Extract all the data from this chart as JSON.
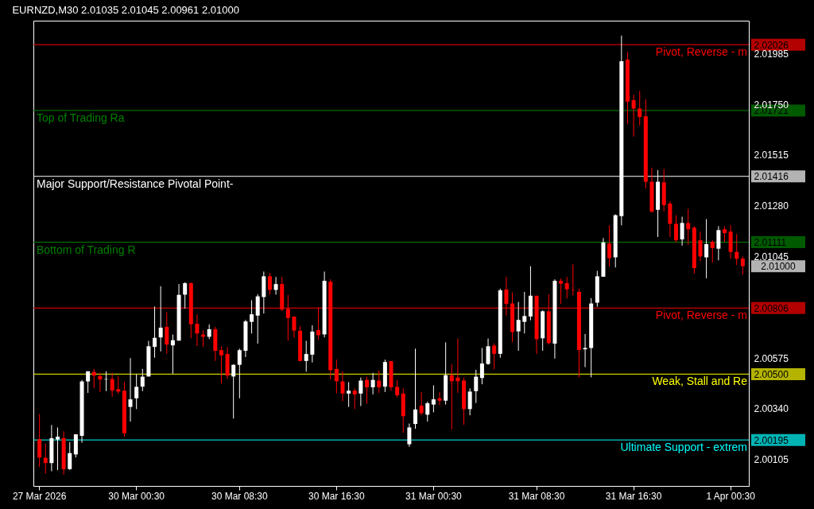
{
  "chart_data": {
    "type": "candlestick",
    "title": "EURNZD,M30  2.01035 2.01045 2.00961 2.01000",
    "categories": [
      "27 Mar 2026",
      null,
      null,
      null,
      null,
      null,
      null,
      null,
      null,
      null,
      null,
      null,
      null,
      null,
      null,
      null,
      "30 Mar 00:30",
      null,
      null,
      null,
      null,
      null,
      null,
      null,
      null,
      null,
      null,
      null,
      null,
      null,
      null,
      null,
      null,
      "30 Mar 08:30",
      null,
      null,
      null,
      null,
      null,
      null,
      null,
      null,
      null,
      null,
      null,
      null,
      null,
      null,
      null,
      "30 Mar 16:30",
      null,
      null,
      null,
      null,
      null,
      null,
      null,
      null,
      null,
      null,
      null,
      null,
      null,
      null,
      null,
      "31 Mar 00:30",
      null,
      null,
      null,
      null,
      null,
      null,
      null,
      null,
      null,
      null,
      null,
      null,
      null,
      null,
      null,
      null,
      "31 Mar 08:30",
      null,
      null,
      null,
      null,
      null,
      null,
      null,
      null,
      null,
      null,
      null,
      null,
      null,
      null,
      null,
      "31 Mar 16:30",
      null,
      null,
      null,
      null,
      null,
      null,
      null,
      null,
      null,
      null,
      null,
      null,
      null,
      null,
      null,
      "1 Apr 00:30",
      null,
      null
    ],
    "ohlc": [
      [
        2.00198,
        2.00315,
        2.0007,
        2.00114
      ],
      [
        2.00112,
        2.00178,
        2.00038,
        2.00088
      ],
      [
        2.00088,
        2.00264,
        2.0005,
        2.00203
      ],
      [
        2.00197,
        2.00253,
        2.00056,
        2.0021
      ],
      [
        2.00203,
        2.00235,
        2.00034,
        2.0006
      ],
      [
        2.0006,
        2.00185,
        2.00056,
        2.00134
      ],
      [
        2.00128,
        2.00221,
        2.00114,
        2.00221
      ],
      [
        2.00214,
        2.00473,
        2.00182,
        2.00466
      ],
      [
        2.00466,
        2.00513,
        2.00413,
        2.00513
      ],
      [
        2.0051,
        2.00524,
        2.00435,
        2.00493
      ],
      [
        2.00491,
        2.00506,
        2.00417,
        2.00475
      ],
      [
        2.00475,
        2.00513,
        2.00421,
        2.00477
      ],
      [
        2.00477,
        2.00506,
        2.00395,
        2.00424
      ],
      [
        2.0043,
        2.00491,
        2.0041,
        2.00419
      ],
      [
        2.00423,
        2.00463,
        2.00211,
        2.00226
      ],
      [
        2.00348,
        2.00574,
        2.0028,
        2.00383
      ],
      [
        2.00388,
        2.005,
        2.00338,
        2.00441
      ],
      [
        2.00442,
        2.00524,
        2.00421,
        2.00488
      ],
      [
        2.00489,
        2.00654,
        2.00489,
        2.00629
      ],
      [
        2.00626,
        2.00813,
        2.00576,
        2.00668
      ],
      [
        2.0067,
        2.00907,
        2.00605,
        2.00715
      ],
      [
        2.00719,
        2.00787,
        2.00594,
        2.00637
      ],
      [
        2.00633,
        2.00683,
        2.00502,
        2.00657
      ],
      [
        2.00655,
        2.00917,
        2.00655,
        2.00867
      ],
      [
        2.00868,
        2.00925,
        2.00803,
        2.00921
      ],
      [
        2.00921,
        2.00925,
        2.00666,
        2.00731
      ],
      [
        2.00733,
        2.00777,
        2.0063,
        2.00688
      ],
      [
        2.00683,
        2.00704,
        2.00626,
        2.00673
      ],
      [
        2.00673,
        2.0073,
        2.00662,
        2.00708
      ],
      [
        2.00708,
        2.00719,
        2.00561,
        2.00608
      ],
      [
        2.00611,
        2.00629,
        2.00457,
        2.00587
      ],
      [
        2.00593,
        2.00625,
        2.00478,
        2.00493
      ],
      [
        2.00489,
        2.00546,
        2.00294,
        2.00543
      ],
      [
        2.00543,
        2.00618,
        2.00388,
        2.00611
      ],
      [
        2.00608,
        2.00751,
        2.00579,
        2.00744
      ],
      [
        2.00742,
        2.00842,
        2.00688,
        2.00777
      ],
      [
        2.00771,
        2.0087,
        2.00641,
        2.0086
      ],
      [
        2.00857,
        2.00975,
        2.00781,
        2.00953
      ],
      [
        2.00953,
        2.00968,
        2.00868,
        2.0089
      ],
      [
        2.0089,
        2.0095,
        2.00868,
        2.00917
      ],
      [
        2.00917,
        2.0095,
        2.00792,
        2.00799
      ],
      [
        2.00802,
        2.00867,
        2.00655,
        2.0076
      ],
      [
        2.00766,
        2.00769,
        2.0067,
        2.00702
      ],
      [
        2.00701,
        2.00722,
        2.00558,
        2.00561
      ],
      [
        2.00561,
        2.00654,
        2.00511,
        2.00593
      ],
      [
        2.0059,
        2.00726,
        2.00554,
        2.00697
      ],
      [
        2.00704,
        2.00809,
        2.00659,
        2.0068
      ],
      [
        2.00684,
        2.00975,
        2.0067,
        2.00932
      ],
      [
        2.00928,
        2.00939,
        2.00475,
        2.00518
      ],
      [
        2.00524,
        2.00567,
        2.0041,
        2.00467
      ],
      [
        2.00466,
        2.00513,
        2.00374,
        2.0041
      ],
      [
        2.0041,
        2.00463,
        2.00348,
        2.00423
      ],
      [
        2.00423,
        2.00434,
        2.00338,
        2.00406
      ],
      [
        2.0041,
        2.00484,
        2.00352,
        2.0047
      ],
      [
        2.00473,
        2.00488,
        2.00363,
        2.00439
      ],
      [
        2.00439,
        2.00506,
        2.00406,
        2.00473
      ],
      [
        2.0047,
        2.00517,
        2.00413,
        2.00439
      ],
      [
        2.00442,
        2.00567,
        2.00417,
        2.00556
      ],
      [
        2.0056,
        2.0056,
        2.00424,
        2.00439
      ],
      [
        2.00441,
        2.00473,
        2.00392,
        2.00402
      ],
      [
        2.0041,
        2.00434,
        2.00229,
        2.00305
      ],
      [
        2.00175,
        2.00271,
        2.00163,
        2.00253
      ],
      [
        2.00269,
        2.00618,
        2.00247,
        2.00336
      ],
      [
        2.00354,
        2.00416,
        2.00309,
        2.00319
      ],
      [
        2.00312,
        2.00372,
        2.0028,
        2.00365
      ],
      [
        2.00359,
        2.00448,
        2.00323,
        2.00383
      ],
      [
        2.00387,
        2.00416,
        2.00356,
        2.00377
      ],
      [
        2.00377,
        2.00647,
        2.00359,
        2.00495
      ],
      [
        2.00495,
        2.00546,
        2.00244,
        2.00467
      ],
      [
        2.00484,
        2.00665,
        2.00413,
        2.00467
      ],
      [
        2.0047,
        2.00484,
        2.00265,
        2.00338
      ],
      [
        2.00338,
        2.00434,
        2.00309,
        2.00419
      ],
      [
        2.00421,
        2.0052,
        2.00366,
        2.00488
      ],
      [
        2.00482,
        2.00621,
        2.00453,
        2.00549
      ],
      [
        2.00547,
        2.00665,
        2.00543,
        2.00629
      ],
      [
        2.00632,
        2.00643,
        2.00522,
        2.00594
      ],
      [
        2.00594,
        2.00896,
        2.00576,
        2.00888
      ],
      [
        2.00892,
        2.0095,
        2.00771,
        2.00825
      ],
      [
        2.00827,
        2.00878,
        2.00648,
        2.00695
      ],
      [
        2.00698,
        2.00834,
        2.00608,
        2.00751
      ],
      [
        2.00742,
        2.00881,
        2.00688,
        2.00769
      ],
      [
        2.00767,
        2.01,
        2.00749,
        2.00863
      ],
      [
        2.00863,
        2.00863,
        2.00594,
        2.00662
      ],
      [
        2.00666,
        2.00795,
        2.00608,
        2.00791
      ],
      [
        2.00791,
        2.0087,
        2.00637,
        2.00644
      ],
      [
        2.00641,
        2.00939,
        2.00572,
        2.00932
      ],
      [
        2.00932,
        2.00943,
        2.00825,
        2.00919
      ],
      [
        2.00921,
        2.0095,
        2.0085,
        2.00893
      ],
      [
        2.00892,
        2.01008,
        2.00864,
        2.0089
      ],
      [
        2.00881,
        2.00896,
        2.00485,
        2.00612
      ],
      [
        2.00615,
        2.00686,
        2.00532,
        2.00621
      ],
      [
        2.00621,
        2.00852,
        2.00485,
        2.00827
      ],
      [
        2.00831,
        2.00978,
        2.00812,
        2.00953
      ],
      [
        2.00951,
        2.0113,
        2.00951,
        2.0111
      ],
      [
        2.01105,
        2.01189,
        2.00998,
        2.01037
      ],
      [
        2.01041,
        2.0124,
        2.00994,
        2.01236
      ],
      [
        2.01232,
        2.02068,
        2.01189,
        2.01949
      ],
      [
        2.01957,
        2.01993,
        2.01658,
        2.01762
      ],
      [
        2.01769,
        2.01794,
        2.016,
        2.0173
      ],
      [
        2.0173,
        2.01812,
        2.01651,
        2.01691
      ],
      [
        2.01694,
        2.01772,
        2.0136,
        2.01391
      ],
      [
        2.01391,
        2.01456,
        2.01247,
        2.01253
      ],
      [
        2.01261,
        2.01445,
        2.01135,
        2.01391
      ],
      [
        2.01388,
        2.01449,
        2.01254,
        2.01283
      ],
      [
        2.0129,
        2.01301,
        2.01135,
        2.01196
      ],
      [
        2.01196,
        2.01236,
        2.0111,
        2.0112
      ],
      [
        2.01124,
        2.01229,
        2.01095,
        2.012
      ],
      [
        2.012,
        2.01265,
        2.01099,
        2.01171
      ],
      [
        2.01178,
        2.01185,
        2.00965,
        2.00991
      ],
      [
        2.0112,
        2.0116,
        2.01023,
        2.01045
      ],
      [
        2.01041,
        2.01218,
        2.00944,
        2.01102
      ],
      [
        2.01113,
        2.0112,
        2.01016,
        2.01084
      ],
      [
        2.01081,
        2.01185,
        2.01027,
        2.01167
      ],
      [
        2.01171,
        2.01185,
        2.01113,
        2.01153
      ],
      [
        2.0116,
        2.01189,
        2.01034,
        2.01066
      ],
      [
        2.01066,
        2.01149,
        2.01005,
        2.01034
      ],
      [
        2.01035,
        2.01045,
        2.00961,
        2.01
      ]
    ],
    "colors": [
      "#ff0000",
      "#ff0000",
      "#ffffff",
      "#ffffff",
      "#ff0000",
      "#ffffff",
      "#ffffff",
      "#ffffff",
      "#ffffff",
      "#ff0000",
      "#ff0000",
      "#ffffff",
      "#ff0000",
      "#ff0000",
      "#ff0000",
      "#ffffff",
      "#ffffff",
      "#ffffff",
      "#ffffff",
      "#ffffff",
      "#ffffff",
      "#ff0000",
      "#ffffff",
      "#ffffff",
      "#ffffff",
      "#ff0000",
      "#ff0000",
      "#ff0000",
      "#ffffff",
      "#ff0000",
      "#ff0000",
      "#ff0000",
      "#ffffff",
      "#ffffff",
      "#ffffff",
      "#ffffff",
      "#ffffff",
      "#ffffff",
      "#ff0000",
      "#ffffff",
      "#ff0000",
      "#ff0000",
      "#ff0000",
      "#ff0000",
      "#ffffff",
      "#ffffff",
      "#ff0000",
      "#ffffff",
      "#ff0000",
      "#ff0000",
      "#ff0000",
      "#ffffff",
      "#ff0000",
      "#ffffff",
      "#ff0000",
      "#ffffff",
      "#ff0000",
      "#ffffff",
      "#ff0000",
      "#ff0000",
      "#ff0000",
      "#ffffff",
      "#ffffff",
      "#ff0000",
      "#ffffff",
      "#ffffff",
      "#ff0000",
      "#ffffff",
      "#ff0000",
      "#ff0000",
      "#ff0000",
      "#ffffff",
      "#ffffff",
      "#ffffff",
      "#ffffff",
      "#ff0000",
      "#ffffff",
      "#ff0000",
      "#ff0000",
      "#ffffff",
      "#ffffff",
      "#ffffff",
      "#ff0000",
      "#ffffff",
      "#ff0000",
      "#ffffff",
      "#ff0000",
      "#ff0000",
      "#ff0000",
      "#ff0000",
      "#ffffff",
      "#ffffff",
      "#ffffff",
      "#ffffff",
      "#ff0000",
      "#ffffff",
      "#ffffff",
      "#ff0000",
      "#ff0000",
      "#ff0000",
      "#ff0000",
      "#ff0000",
      "#ffffff",
      "#ff0000",
      "#ff0000",
      "#ff0000",
      "#ffffff",
      "#ff0000",
      "#ff0000",
      "#ff0000",
      "#ffffff",
      "#ff0000",
      "#ffffff",
      "#ff0000",
      "#ff0000",
      "#ff0000",
      "#ff0000"
    ],
    "ylim": [
      1.99982,
      2.02137
    ],
    "yticks": [
      2.00105,
      2.00195,
      {
        "value": 2.005,
        "label": "2.00500"
      },
      2.00806,
      2.01111,
      2.01416,
      2.01721,
      2.02026,
      {
        "value": 2.0034,
        "label": "2.00340"
      },
      2.00575,
      2.01045,
      {
        "value": 2.0128,
        "label": "2.01280"
      },
      2.01515,
      {
        "value": 2.0175,
        "label": "2.01750"
      },
      2.01985
    ],
    "ref_lines": [
      {
        "axis": "y",
        "value": 2.02026,
        "label": "Pivot, Reverse - m",
        "color": "#ff0000"
      },
      {
        "axis": "y",
        "value": 2.01721,
        "label": "Top of Trading Ra",
        "color": "#008000"
      },
      {
        "axis": "y",
        "value": 2.01416,
        "label": "Major Support/Resistance Pivotal Point-",
        "color": "#ffffff"
      },
      {
        "axis": "y",
        "value": 2.01111,
        "label": "Bottom of Trading R",
        "color": "#008000"
      },
      {
        "axis": "y",
        "value": 2.00806,
        "label": "Pivot, Reverse - m",
        "color": "#ff0000"
      },
      {
        "axis": "y",
        "value": 2.005,
        "label": "Weak, Stall and Re",
        "color": "#ffff00"
      },
      {
        "axis": "y",
        "value": 2.00195,
        "label": "Ultimate Support - extrem",
        "color": "#00ffff"
      }
    ],
    "annotations": [
      "2.01000"
    ]
  }
}
